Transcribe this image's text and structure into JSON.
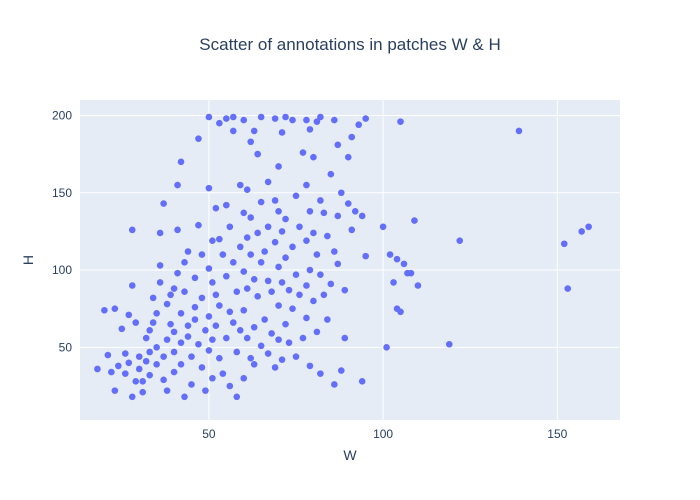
{
  "chart_data": {
    "type": "scatter",
    "title": "Scatter of annotations in patches W & H",
    "xlabel": "W",
    "ylabel": "H",
    "xlim": [
      13,
      168
    ],
    "ylim": [
      3,
      210
    ],
    "xticks": [
      50,
      100,
      150
    ],
    "yticks": [
      50,
      100,
      150,
      200
    ],
    "grid": true,
    "colors": {
      "marker": "#636efa",
      "plot_bg": "#e5ecf6",
      "grid": "#ffffff",
      "text": "#2a3f5f"
    },
    "points": [
      [
        18,
        36
      ],
      [
        20,
        74
      ],
      [
        21,
        45
      ],
      [
        22,
        34
      ],
      [
        23,
        22
      ],
      [
        23,
        75
      ],
      [
        24,
        38
      ],
      [
        25,
        62
      ],
      [
        26,
        33
      ],
      [
        26,
        46
      ],
      [
        27,
        40
      ],
      [
        27,
        71
      ],
      [
        28,
        90
      ],
      [
        28,
        18
      ],
      [
        28,
        126
      ],
      [
        29,
        66
      ],
      [
        29,
        28
      ],
      [
        30,
        36
      ],
      [
        30,
        44
      ],
      [
        31,
        21
      ],
      [
        31,
        28
      ],
      [
        32,
        41
      ],
      [
        32,
        56
      ],
      [
        33,
        61
      ],
      [
        33,
        32
      ],
      [
        33,
        47
      ],
      [
        34,
        82
      ],
      [
        34,
        66
      ],
      [
        35,
        39
      ],
      [
        35,
        50
      ],
      [
        35,
        72
      ],
      [
        36,
        92
      ],
      [
        36,
        103
      ],
      [
        36,
        124
      ],
      [
        37,
        143
      ],
      [
        37,
        29
      ],
      [
        37,
        44
      ],
      [
        38,
        55
      ],
      [
        38,
        78
      ],
      [
        38,
        22
      ],
      [
        39,
        65
      ],
      [
        39,
        84
      ],
      [
        40,
        88
      ],
      [
        40,
        34
      ],
      [
        40,
        60
      ],
      [
        40,
        47
      ],
      [
        41,
        126
      ],
      [
        41,
        155
      ],
      [
        41,
        98
      ],
      [
        42,
        170
      ],
      [
        42,
        72
      ],
      [
        42,
        53
      ],
      [
        42,
        39
      ],
      [
        43,
        18
      ],
      [
        43,
        86
      ],
      [
        43,
        105
      ],
      [
        44,
        112
      ],
      [
        44,
        64
      ],
      [
        44,
        57
      ],
      [
        45,
        26
      ],
      [
        45,
        44
      ],
      [
        46,
        95
      ],
      [
        46,
        76
      ],
      [
        46,
        68
      ],
      [
        47,
        185
      ],
      [
        47,
        129
      ],
      [
        47,
        52
      ],
      [
        48,
        110
      ],
      [
        48,
        82
      ],
      [
        48,
        37
      ],
      [
        49,
        22
      ],
      [
        49,
        61
      ],
      [
        50,
        153
      ],
      [
        50,
        199
      ],
      [
        50,
        101
      ],
      [
        50,
        70
      ],
      [
        50,
        48
      ],
      [
        51,
        119
      ],
      [
        51,
        92
      ],
      [
        51,
        55
      ],
      [
        51,
        30
      ],
      [
        52,
        140
      ],
      [
        52,
        84
      ],
      [
        52,
        64
      ],
      [
        53,
        195
      ],
      [
        53,
        120
      ],
      [
        53,
        77
      ],
      [
        53,
        43
      ],
      [
        54,
        33
      ],
      [
        54,
        110
      ],
      [
        55,
        142
      ],
      [
        55,
        198
      ],
      [
        55,
        96
      ],
      [
        55,
        56
      ],
      [
        56,
        25
      ],
      [
        56,
        128
      ],
      [
        56,
        73
      ],
      [
        57,
        199
      ],
      [
        57,
        190
      ],
      [
        57,
        105
      ],
      [
        57,
        66
      ],
      [
        58,
        18
      ],
      [
        58,
        47
      ],
      [
        58,
        86
      ],
      [
        59,
        155
      ],
      [
        59,
        115
      ],
      [
        59,
        61
      ],
      [
        60,
        197
      ],
      [
        60,
        137
      ],
      [
        60,
        99
      ],
      [
        60,
        74
      ],
      [
        60,
        30
      ],
      [
        61,
        152
      ],
      [
        61,
        121
      ],
      [
        61,
        88
      ],
      [
        61,
        56
      ],
      [
        62,
        43
      ],
      [
        62,
        183
      ],
      [
        62,
        134
      ],
      [
        62,
        110
      ],
      [
        63,
        190
      ],
      [
        63,
        94
      ],
      [
        63,
        63
      ],
      [
        63,
        39
      ],
      [
        64,
        175
      ],
      [
        64,
        124
      ],
      [
        64,
        83
      ],
      [
        65,
        199
      ],
      [
        65,
        144
      ],
      [
        65,
        105
      ],
      [
        65,
        51
      ],
      [
        66,
        68
      ],
      [
        66,
        112
      ],
      [
        67,
        157
      ],
      [
        67,
        128
      ],
      [
        67,
        93
      ],
      [
        67,
        46
      ],
      [
        68,
        86
      ],
      [
        68,
        59
      ],
      [
        69,
        198
      ],
      [
        69,
        145
      ],
      [
        69,
        118
      ],
      [
        69,
        37
      ],
      [
        70,
        167
      ],
      [
        70,
        138
      ],
      [
        70,
        102
      ],
      [
        70,
        77
      ],
      [
        70,
        55
      ],
      [
        71,
        189
      ],
      [
        71,
        125
      ],
      [
        71,
        92
      ],
      [
        71,
        42
      ],
      [
        72,
        199
      ],
      [
        72,
        133
      ],
      [
        72,
        108
      ],
      [
        72,
        65
      ],
      [
        73,
        87
      ],
      [
        73,
        53
      ],
      [
        74,
        197
      ],
      [
        74,
        115
      ],
      [
        74,
        75
      ],
      [
        75,
        148
      ],
      [
        75,
        97
      ],
      [
        75,
        44
      ],
      [
        76,
        128
      ],
      [
        76,
        84
      ],
      [
        77,
        176
      ],
      [
        77,
        56
      ],
      [
        78,
        197
      ],
      [
        78,
        155
      ],
      [
        78,
        119
      ],
      [
        78,
        90
      ],
      [
        78,
        69
      ],
      [
        79,
        191
      ],
      [
        79,
        138
      ],
      [
        79,
        100
      ],
      [
        79,
        38
      ],
      [
        80,
        173
      ],
      [
        80,
        124
      ],
      [
        80,
        80
      ],
      [
        81,
        196
      ],
      [
        81,
        110
      ],
      [
        81,
        60
      ],
      [
        82,
        33
      ],
      [
        82,
        199
      ],
      [
        82,
        145
      ],
      [
        82,
        97
      ],
      [
        83,
        137
      ],
      [
        83,
        84
      ],
      [
        84,
        122
      ],
      [
        84,
        68
      ],
      [
        85,
        91
      ],
      [
        85,
        162
      ],
      [
        86,
        197
      ],
      [
        86,
        112
      ],
      [
        86,
        26
      ],
      [
        87,
        181
      ],
      [
        87,
        135
      ],
      [
        87,
        104
      ],
      [
        88,
        35
      ],
      [
        88,
        150
      ],
      [
        89,
        87
      ],
      [
        89,
        56
      ],
      [
        90,
        173
      ],
      [
        90,
        143
      ],
      [
        91,
        126
      ],
      [
        91,
        186
      ],
      [
        92,
        138
      ],
      [
        93,
        194
      ],
      [
        94,
        28
      ],
      [
        94,
        135
      ],
      [
        95,
        198
      ],
      [
        95,
        109
      ],
      [
        100,
        128
      ],
      [
        101,
        50
      ],
      [
        102,
        110
      ],
      [
        103,
        92
      ],
      [
        104,
        107
      ],
      [
        104,
        75
      ],
      [
        105,
        196
      ],
      [
        105,
        73
      ],
      [
        106,
        104
      ],
      [
        107,
        98
      ],
      [
        108,
        98
      ],
      [
        109,
        132
      ],
      [
        110,
        90
      ],
      [
        119,
        52
      ],
      [
        122,
        119
      ],
      [
        139,
        190
      ],
      [
        152,
        117
      ],
      [
        153,
        88
      ],
      [
        157,
        125
      ],
      [
        159,
        128
      ]
    ]
  }
}
